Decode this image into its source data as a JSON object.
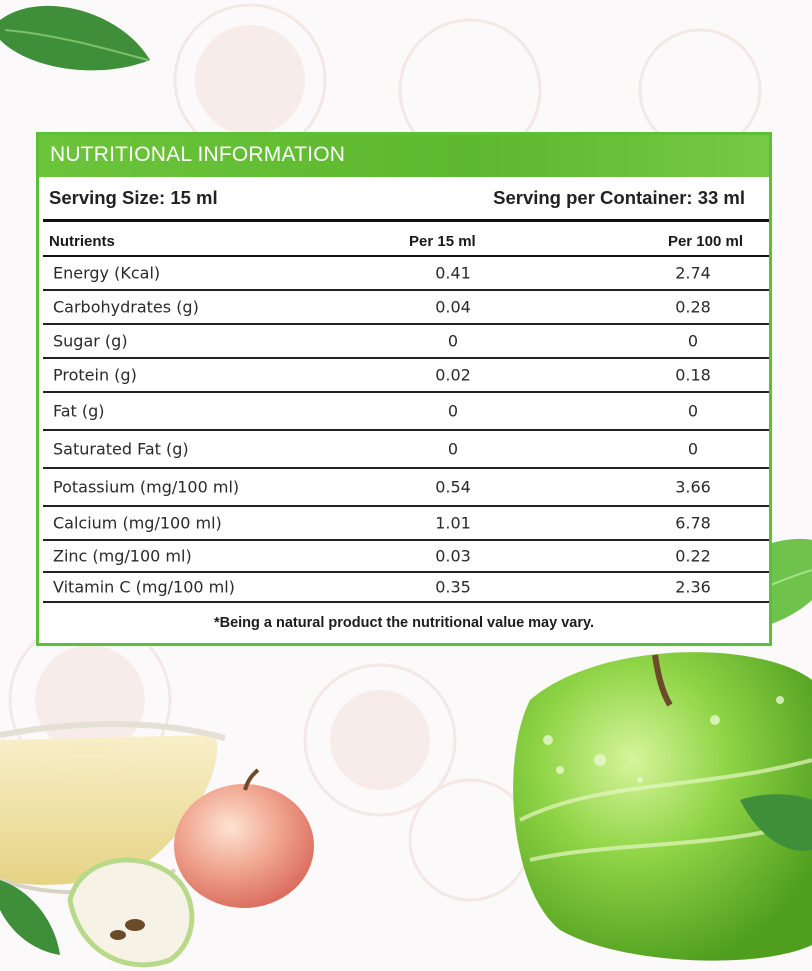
{
  "panel": {
    "title": "NUTRITIONAL INFORMATION",
    "serving_size": "Serving Size: 15 ml",
    "serving_per_container": "Serving per Container: 33 ml",
    "columns": [
      "Nutrients",
      "Per 15 ml",
      "Per 100 ml"
    ],
    "rows": [
      {
        "name": "Energy (Kcal)",
        "per15": "0.41",
        "per100": "2.74"
      },
      {
        "name": "Carbohydrates (g)",
        "per15": "0.04",
        "per100": "0.28"
      },
      {
        "name": "Sugar (g)",
        "per15": "0",
        "per100": "0"
      },
      {
        "name": "Protein (g)",
        "per15": "0.02",
        "per100": "0.18"
      },
      {
        "name": "Fat (g)",
        "per15": "0",
        "per100": "0"
      },
      {
        "name": "Saturated Fat (g)",
        "per15": "0",
        "per100": "0"
      },
      {
        "name": "Potassium (mg/100 ml)",
        "per15": "0.54",
        "per100": "3.66"
      },
      {
        "name": "Calcium (mg/100 ml)",
        "per15": "1.01",
        "per100": "6.78"
      },
      {
        "name": "Zinc (mg/100 ml)",
        "per15": "0.03",
        "per100": "0.22"
      },
      {
        "name": "Vitamin C (mg/100 ml)",
        "per15": "0.35",
        "per100": "2.36"
      }
    ],
    "footnote": "*Being a natural product the nutritional value may vary."
  },
  "colors": {
    "accent_green": "#5cbf35",
    "apple_green": "#7fd13e",
    "apple_red": "#e8908a",
    "juice": "#f3e7a6"
  },
  "illustrations": [
    "leaf-icon",
    "green-apple-icon",
    "red-apple-icon",
    "juice-bowl-icon",
    "apple-slice-icon"
  ]
}
